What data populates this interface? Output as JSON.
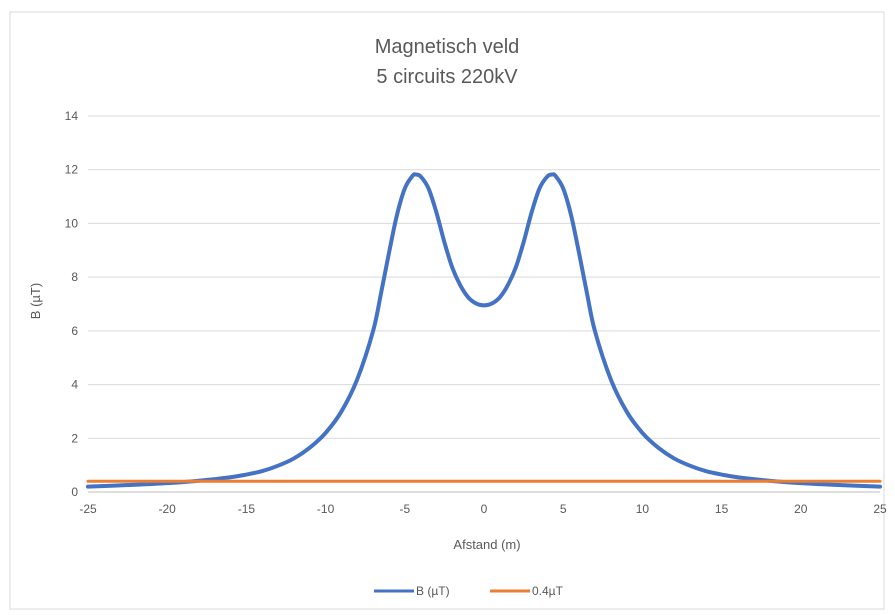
{
  "chart_data": {
    "type": "line",
    "title": "Magnetisch veld",
    "subtitle": "5 circuits 220kV",
    "xlabel": "Afstand (m)",
    "ylabel": "B (µT)",
    "xlim": [
      -25,
      25
    ],
    "ylim": [
      0,
      14
    ],
    "x_ticks": [
      "-25",
      "-20",
      "-15",
      "-10",
      "-5",
      "0",
      "5",
      "10",
      "15",
      "20",
      "25"
    ],
    "y_ticks": [
      "0",
      "2",
      "4",
      "6",
      "8",
      "10",
      "12",
      "14"
    ],
    "grid": true,
    "legend_position": "bottom",
    "series": [
      {
        "name": "B (µT)",
        "color": "#4472c4",
        "x": [
          -25,
          -22,
          -20,
          -18,
          -16,
          -15,
          -14,
          -13,
          -12,
          -11,
          -10,
          -9,
          -8,
          -7,
          -6.5,
          -6,
          -5.5,
          -5,
          -4.5,
          -4.3,
          -4,
          -3.5,
          -3,
          -2.5,
          -2,
          -1.5,
          -1,
          -0.5,
          0,
          0.5,
          1,
          1.5,
          2,
          2.5,
          3,
          3.5,
          4,
          4.3,
          4.5,
          5,
          5.5,
          6,
          6.5,
          7,
          8,
          9,
          10,
          11,
          12,
          13,
          14,
          15,
          16,
          18,
          20,
          22,
          25
        ],
        "y": [
          0.2,
          0.27,
          0.33,
          0.42,
          0.55,
          0.65,
          0.78,
          0.98,
          1.25,
          1.65,
          2.2,
          3.0,
          4.2,
          6.0,
          7.4,
          8.9,
          10.3,
          11.3,
          11.78,
          11.82,
          11.75,
          11.3,
          10.4,
          9.3,
          8.35,
          7.7,
          7.25,
          7.02,
          6.95,
          7.02,
          7.25,
          7.7,
          8.35,
          9.3,
          10.4,
          11.3,
          11.75,
          11.82,
          11.78,
          11.3,
          10.3,
          8.9,
          7.4,
          6.0,
          4.2,
          3.0,
          2.2,
          1.65,
          1.25,
          0.98,
          0.78,
          0.65,
          0.55,
          0.42,
          0.33,
          0.27,
          0.2
        ]
      },
      {
        "name": "0.4µT",
        "color": "#ed7d31",
        "x": [
          -25,
          25
        ],
        "y": [
          0.4,
          0.4
        ]
      }
    ]
  }
}
